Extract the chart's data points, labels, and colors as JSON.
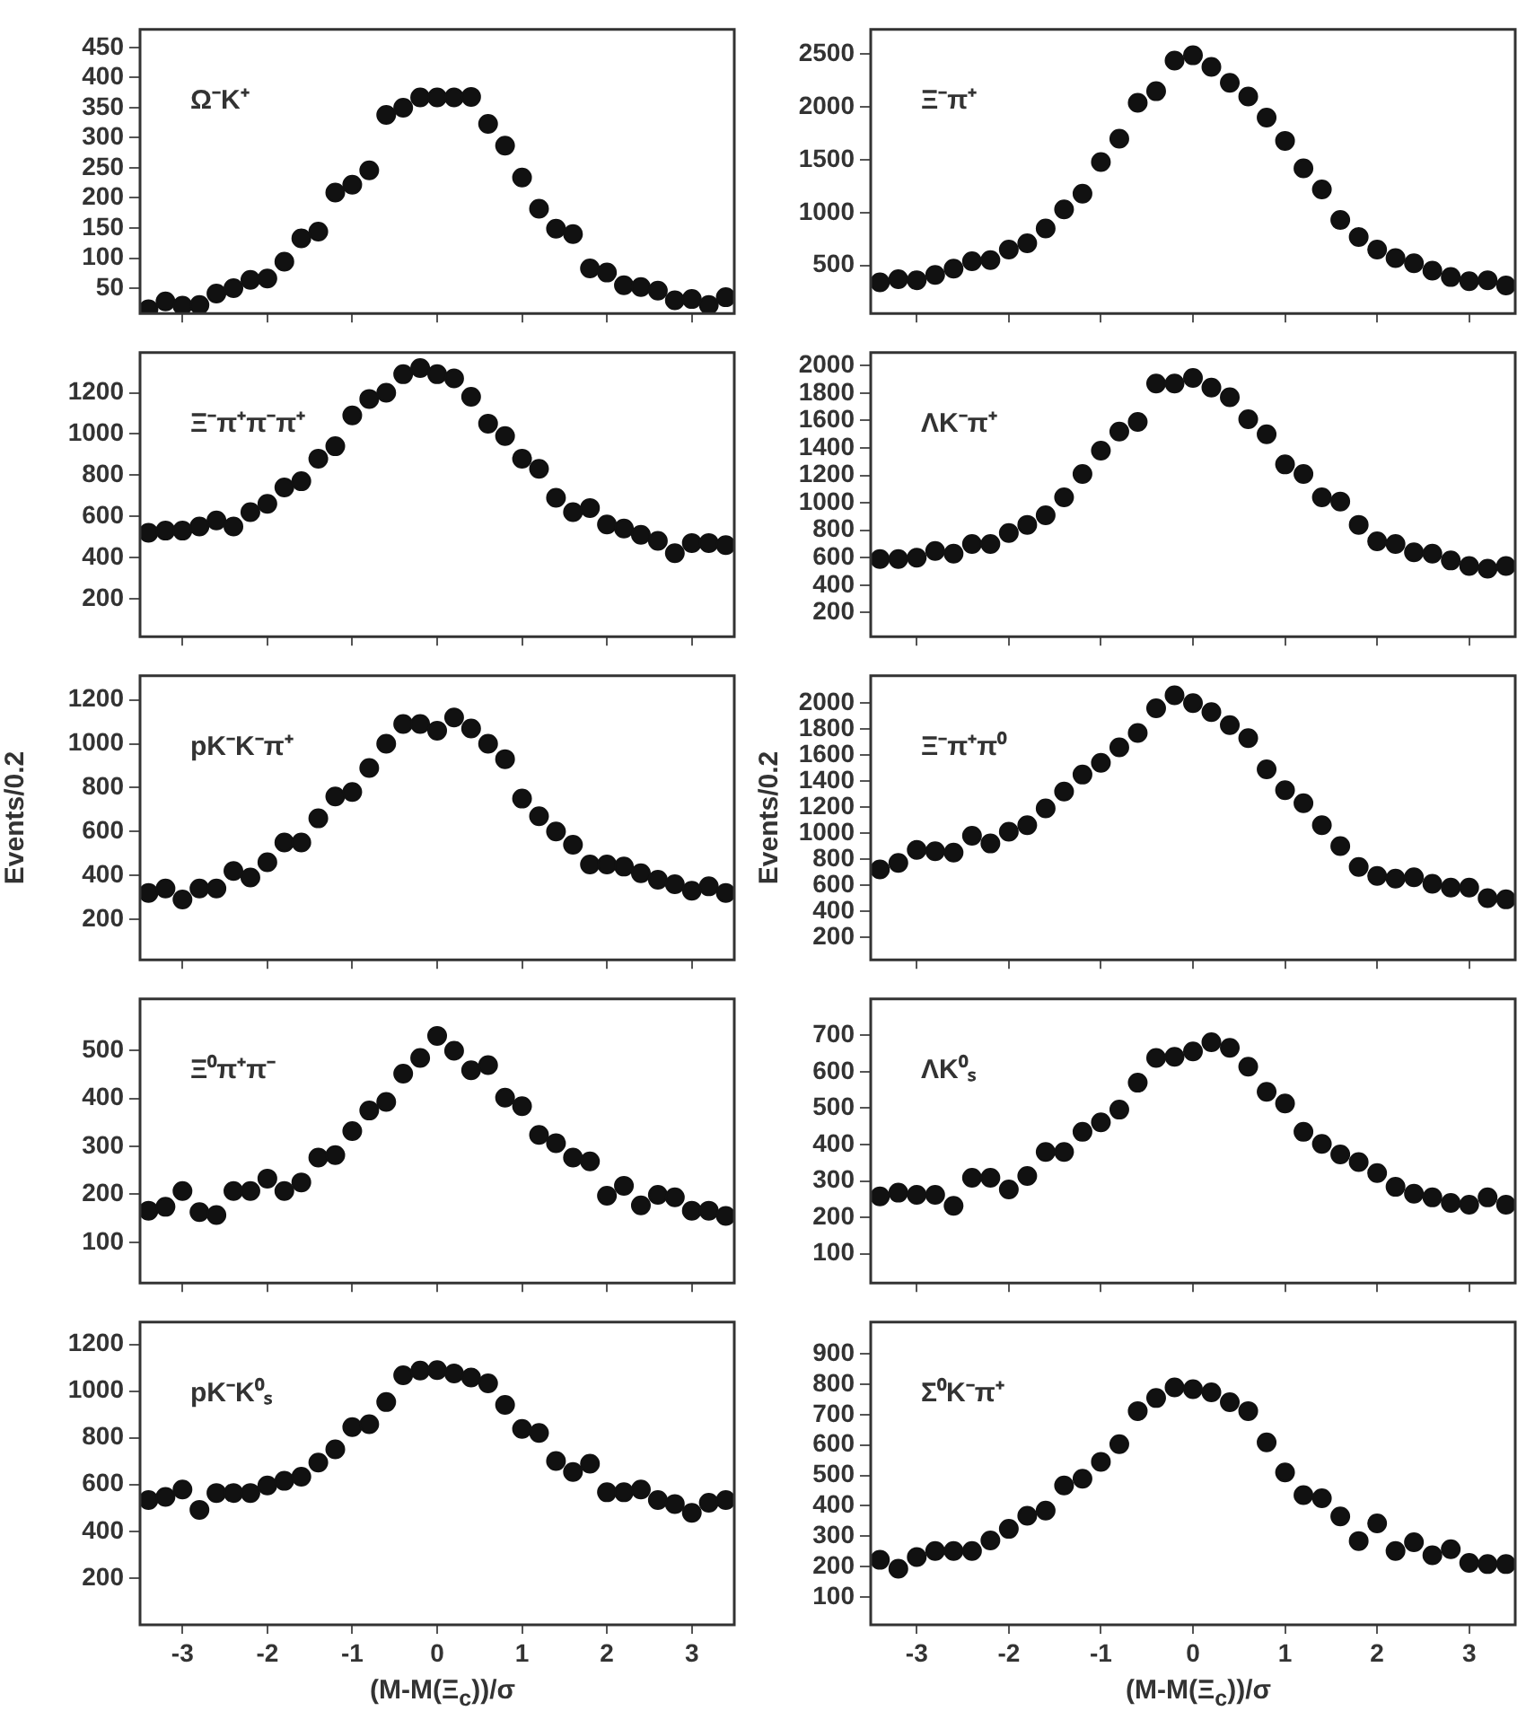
{
  "chart_data": [
    {
      "type": "scatter",
      "annotations": [
        "Ω⁻K⁺"
      ],
      "x": [
        -3.4,
        -3.2,
        -3,
        -2.8,
        -2.6,
        -2.4,
        -2.2,
        -2,
        -1.8,
        -1.6,
        -1.4,
        -1.2,
        -1,
        -0.8,
        -0.6,
        -0.4,
        -0.2,
        0,
        0.2,
        0.4,
        0.6,
        0.8,
        1,
        1.2,
        1.4,
        1.6,
        1.8,
        2,
        2.2,
        2.4,
        2.6,
        2.8,
        3,
        3.2,
        3.4
      ],
      "series": [
        {
          "color": "#111111",
          "values": [
            15,
            28,
            21,
            22,
            41,
            50,
            64,
            66,
            94,
            133,
            144,
            209,
            222,
            246,
            338,
            350,
            367,
            367,
            367,
            368,
            323,
            287,
            234,
            182,
            149,
            140,
            83,
            76,
            55,
            52,
            46,
            30,
            32,
            22,
            35
          ]
        }
      ],
      "marker": "circle",
      "xlim": [
        -3.5,
        3.5
      ],
      "xticks": [
        -3,
        -2,
        -1,
        0,
        1,
        2,
        3
      ],
      "ylim": [
        8,
        480
      ],
      "yticks": [
        50,
        100,
        150,
        200,
        250,
        300,
        350,
        400,
        450
      ],
      "tick_labels": "y"
    },
    {
      "type": "scatter",
      "annotations": [
        "Ξ⁻π⁺π⁻π⁺"
      ],
      "x": [
        -3.4,
        -3.2,
        -3,
        -2.8,
        -2.6,
        -2.4,
        -2.2,
        -2,
        -1.8,
        -1.6,
        -1.4,
        -1.2,
        -1,
        -0.8,
        -0.6,
        -0.4,
        -0.2,
        0,
        0.2,
        0.4,
        0.6,
        0.8,
        1,
        1.2,
        1.4,
        1.6,
        1.8,
        2,
        2.2,
        2.4,
        2.6,
        2.8,
        3,
        3.2,
        3.4
      ],
      "series": [
        {
          "color": "#111111",
          "values": [
            520,
            530,
            530,
            550,
            580,
            550,
            620,
            660,
            740,
            770,
            880,
            940,
            1090,
            1170,
            1200,
            1290,
            1320,
            1290,
            1270,
            1180,
            1050,
            990,
            880,
            830,
            690,
            620,
            640,
            560,
            540,
            510,
            480,
            420,
            470,
            470,
            460
          ]
        }
      ],
      "marker": "circle",
      "xlim": [
        -3.5,
        3.5
      ],
      "xticks": [
        -3,
        -2,
        -1,
        0,
        1,
        2,
        3
      ],
      "ylim": [
        15,
        1395
      ],
      "yticks": [
        200,
        400,
        600,
        800,
        1000,
        1200
      ],
      "tick_labels": "y"
    },
    {
      "type": "scatter",
      "annotations": [
        "pK⁻K⁻π⁺"
      ],
      "ylabel": "Events/0.2",
      "x": [
        -3.4,
        -3.2,
        -3,
        -2.8,
        -2.6,
        -2.4,
        -2.2,
        -2,
        -1.8,
        -1.6,
        -1.4,
        -1.2,
        -1,
        -0.8,
        -0.6,
        -0.4,
        -0.2,
        0,
        0.2,
        0.4,
        0.6,
        0.8,
        1,
        1.2,
        1.4,
        1.6,
        1.8,
        2,
        2.2,
        2.4,
        2.6,
        2.8,
        3,
        3.2,
        3.4
      ],
      "series": [
        {
          "color": "#111111",
          "values": [
            320,
            340,
            290,
            340,
            340,
            420,
            390,
            460,
            550,
            550,
            660,
            760,
            780,
            890,
            1000,
            1090,
            1090,
            1060,
            1120,
            1070,
            1000,
            930,
            750,
            670,
            600,
            540,
            450,
            450,
            440,
            410,
            380,
            360,
            330,
            350,
            320
          ]
        }
      ],
      "marker": "circle",
      "xlim": [
        -3.5,
        3.5
      ],
      "xticks": [
        -3,
        -2,
        -1,
        0,
        1,
        2,
        3
      ],
      "ylim": [
        15,
        1310
      ],
      "yticks": [
        200,
        400,
        600,
        800,
        1000,
        1200
      ],
      "tick_labels": "y"
    },
    {
      "type": "scatter",
      "annotations": [
        "Ξ⁰π⁺π⁻"
      ],
      "x": [
        -3.4,
        -3.2,
        -3,
        -2.8,
        -2.6,
        -2.4,
        -2.2,
        -2,
        -1.8,
        -1.6,
        -1.4,
        -1.2,
        -1,
        -0.8,
        -0.6,
        -0.4,
        -0.2,
        0,
        0.2,
        0.4,
        0.6,
        0.8,
        1,
        1.2,
        1.4,
        1.6,
        1.8,
        2,
        2.2,
        2.4,
        2.6,
        2.8,
        3,
        3.2,
        3.4
      ],
      "series": [
        {
          "color": "#111111",
          "values": [
            166,
            174,
            207,
            163,
            157,
            207,
            207,
            233,
            207,
            225,
            277,
            282,
            332,
            375,
            393,
            452,
            485,
            531,
            500,
            459,
            470,
            402,
            384,
            324,
            307,
            277,
            269,
            197,
            218,
            177,
            199,
            194,
            166,
            166,
            155
          ]
        }
      ],
      "marker": "circle",
      "xlim": [
        -3.5,
        3.5
      ],
      "xticks": [
        -3,
        -2,
        -1,
        0,
        1,
        2,
        3
      ],
      "ylim": [
        15,
        608
      ],
      "yticks": [
        100,
        200,
        300,
        400,
        500
      ],
      "tick_labels": "y"
    },
    {
      "type": "scatter",
      "annotations": [
        "pK⁻K⁰ₛ"
      ],
      "xlabel": "(M-M(Ξ$_{c}$))/σ",
      "x": [
        -3.4,
        -3.2,
        -3,
        -2.8,
        -2.6,
        -2.4,
        -2.2,
        -2,
        -1.8,
        -1.6,
        -1.4,
        -1.2,
        -1,
        -0.8,
        -0.6,
        -0.4,
        -0.2,
        0,
        0.2,
        0.4,
        0.6,
        0.8,
        1,
        1.2,
        1.4,
        1.6,
        1.8,
        2,
        2.2,
        2.4,
        2.6,
        2.8,
        3,
        3.2,
        3.4
      ],
      "series": [
        {
          "color": "#111111",
          "values": [
            534,
            547,
            579,
            492,
            564,
            564,
            564,
            596,
            616,
            634,
            694,
            751,
            846,
            858,
            953,
            1068,
            1088,
            1090,
            1075,
            1058,
            1033,
            941,
            838,
            821,
            701,
            654,
            689,
            567,
            567,
            579,
            534,
            517,
            479,
            522,
            534
          ]
        }
      ],
      "marker": "circle",
      "xlim": [
        -3.5,
        3.5
      ],
      "xticks": [
        -3,
        -2,
        -1,
        0,
        1,
        2,
        3
      ],
      "ylim": [
        0,
        1295
      ],
      "yticks": [
        200,
        400,
        600,
        800,
        1000,
        1200
      ]
    },
    {
      "type": "scatter",
      "annotations": [
        "Ξ⁻π⁺"
      ],
      "x": [
        -3.4,
        -3.2,
        -3,
        -2.8,
        -2.6,
        -2.4,
        -2.2,
        -2,
        -1.8,
        -1.6,
        -1.4,
        -1.2,
        -1,
        -0.8,
        -0.6,
        -0.4,
        -0.2,
        0,
        0.2,
        0.4,
        0.6,
        0.8,
        1,
        1.2,
        1.4,
        1.6,
        1.8,
        2,
        2.2,
        2.4,
        2.6,
        2.8,
        3,
        3.2,
        3.4
      ],
      "series": [
        {
          "color": "#111111",
          "values": [
            340,
            370,
            360,
            410,
            470,
            540,
            550,
            650,
            710,
            850,
            1030,
            1180,
            1480,
            1700,
            2040,
            2150,
            2440,
            2490,
            2380,
            2230,
            2100,
            1900,
            1680,
            1420,
            1220,
            930,
            770,
            650,
            570,
            520,
            450,
            390,
            350,
            360,
            310
          ]
        }
      ],
      "marker": "circle",
      "xlim": [
        -3.5,
        3.5
      ],
      "xticks": [
        -3,
        -2,
        -1,
        0,
        1,
        2,
        3
      ],
      "ylim": [
        45,
        2735
      ],
      "yticks": [
        500,
        1000,
        1500,
        2000,
        2500
      ],
      "tick_labels": "y"
    },
    {
      "type": "scatter",
      "annotations": [
        "ΛK⁻π⁺"
      ],
      "x": [
        -3.4,
        -3.2,
        -3,
        -2.8,
        -2.6,
        -2.4,
        -2.2,
        -2,
        -1.8,
        -1.6,
        -1.4,
        -1.2,
        -1,
        -0.8,
        -0.6,
        -0.4,
        -0.2,
        0,
        0.2,
        0.4,
        0.6,
        0.8,
        1,
        1.2,
        1.4,
        1.6,
        1.8,
        2,
        2.2,
        2.4,
        2.6,
        2.8,
        3,
        3.2,
        3.4
      ],
      "series": [
        {
          "color": "#111111",
          "values": [
            590,
            590,
            600,
            650,
            630,
            700,
            700,
            780,
            840,
            910,
            1040,
            1210,
            1380,
            1520,
            1590,
            1870,
            1870,
            1910,
            1840,
            1770,
            1610,
            1500,
            1280,
            1210,
            1040,
            1010,
            840,
            720,
            700,
            640,
            630,
            580,
            540,
            520,
            540
          ]
        }
      ],
      "marker": "circle",
      "xlim": [
        -3.5,
        3.5
      ],
      "xticks": [
        -3,
        -2,
        -1,
        0,
        1,
        2,
        3
      ],
      "ylim": [
        25,
        2095
      ],
      "yticks": [
        200,
        400,
        600,
        800,
        1000,
        1200,
        1400,
        1600,
        1800,
        2000
      ],
      "tick_labels": "y"
    },
    {
      "type": "scatter",
      "annotations": [
        "Ξ⁻π⁺π⁰"
      ],
      "ylabel": "Events/0.2",
      "x": [
        -3.4,
        -3.2,
        -3,
        -2.8,
        -2.6,
        -2.4,
        -2.2,
        -2,
        -1.8,
        -1.6,
        -1.4,
        -1.2,
        -1,
        -0.8,
        -0.6,
        -0.4,
        -0.2,
        0,
        0.2,
        0.4,
        0.6,
        0.8,
        1,
        1.2,
        1.4,
        1.6,
        1.8,
        2,
        2.2,
        2.4,
        2.6,
        2.8,
        3,
        3.2,
        3.4
      ],
      "series": [
        {
          "color": "#111111",
          "values": [
            720,
            770,
            870,
            860,
            850,
            980,
            920,
            1010,
            1060,
            1190,
            1320,
            1450,
            1540,
            1660,
            1770,
            1960,
            2060,
            2000,
            1930,
            1830,
            1730,
            1490,
            1330,
            1230,
            1060,
            900,
            740,
            670,
            650,
            660,
            610,
            580,
            580,
            500,
            490
          ]
        }
      ],
      "marker": "circle",
      "xlim": [
        -3.5,
        3.5
      ],
      "xticks": [
        -3,
        -2,
        -1,
        0,
        1,
        2,
        3
      ],
      "ylim": [
        25,
        2210
      ],
      "yticks": [
        200,
        400,
        600,
        800,
        1000,
        1200,
        1400,
        1600,
        1800,
        2000
      ],
      "tick_labels": "y"
    },
    {
      "type": "scatter",
      "annotations": [
        "ΛK⁰ₛ"
      ],
      "x": [
        -3.4,
        -3.2,
        -3,
        -2.8,
        -2.6,
        -2.4,
        -2.2,
        -2,
        -1.8,
        -1.6,
        -1.4,
        -1.2,
        -1,
        -0.8,
        -0.6,
        -0.4,
        -0.2,
        0,
        0.2,
        0.4,
        0.6,
        0.8,
        1,
        1.2,
        1.4,
        1.6,
        1.8,
        2,
        2.2,
        2.4,
        2.6,
        2.8,
        3,
        3.2,
        3.4
      ],
      "series": [
        {
          "color": "#111111",
          "values": [
            258,
            268,
            262,
            262,
            232,
            309,
            309,
            277,
            314,
            380,
            380,
            435,
            461,
            496,
            570,
            638,
            641,
            656,
            681,
            666,
            614,
            545,
            513,
            435,
            402,
            373,
            352,
            322,
            284,
            265,
            255,
            240,
            235,
            255,
            235
          ]
        }
      ],
      "marker": "circle",
      "xlim": [
        -3.5,
        3.5
      ],
      "xticks": [
        -3,
        -2,
        -1,
        0,
        1,
        2,
        3
      ],
      "ylim": [
        20,
        800
      ],
      "yticks": [
        100,
        200,
        300,
        400,
        500,
        600,
        700
      ],
      "tick_labels": "y"
    },
    {
      "type": "scatter",
      "annotations": [
        "Σ⁰K⁻π⁺"
      ],
      "xlabel": "(M-M(Ξ$_{c}$))/σ",
      "x": [
        -3.4,
        -3.2,
        -3,
        -2.8,
        -2.6,
        -2.4,
        -2.2,
        -2,
        -1.8,
        -1.6,
        -1.4,
        -1.2,
        -1,
        -0.8,
        -0.6,
        -0.4,
        -0.2,
        0,
        0.2,
        0.4,
        0.6,
        0.8,
        1,
        1.2,
        1.4,
        1.6,
        1.8,
        2,
        2.2,
        2.4,
        2.6,
        2.8,
        3,
        3.2,
        3.4
      ],
      "series": [
        {
          "color": "#111111",
          "values": [
            222,
            193,
            231,
            251,
            251,
            251,
            286,
            324,
            367,
            384,
            467,
            489,
            545,
            603,
            712,
            755,
            790,
            784,
            774,
            741,
            712,
            609,
            510,
            435,
            425,
            365,
            284,
            342,
            251,
            280,
            237,
            257,
            212,
            208,
            208
          ]
        }
      ],
      "marker": "circle",
      "xlim": [
        -3.5,
        3.5
      ],
      "xticks": [
        -3,
        -2,
        -1,
        0,
        1,
        2,
        3
      ],
      "ylim": [
        8,
        1005
      ],
      "yticks": [
        100,
        200,
        300,
        400,
        500,
        600,
        700,
        800,
        900
      ]
    }
  ]
}
